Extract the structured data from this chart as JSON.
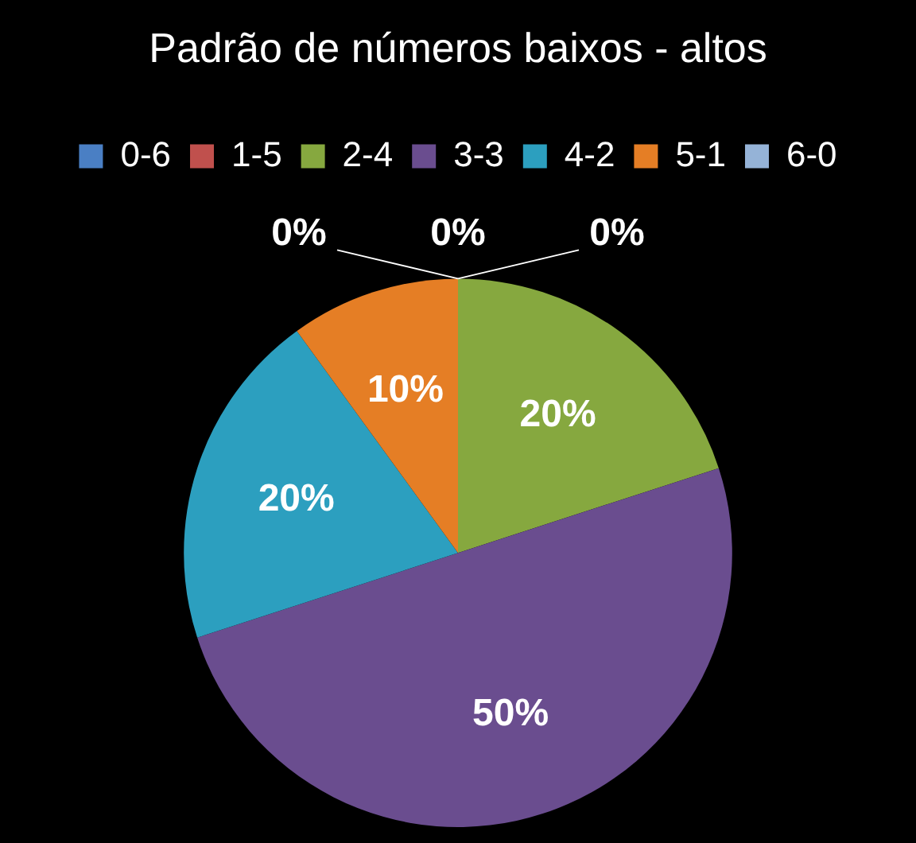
{
  "chart_data": {
    "type": "pie",
    "title": "Padrão de números baixos - altos",
    "categories": [
      "0-6",
      "1-5",
      "2-4",
      "3-3",
      "4-2",
      "5-1",
      "6-0"
    ],
    "values": [
      0,
      0,
      20,
      50,
      20,
      10,
      0
    ],
    "colors": [
      "#4a7fc4",
      "#c0504d",
      "#86a83f",
      "#6a4d8f",
      "#2c9fbf",
      "#e57e25",
      "#95b3d7"
    ],
    "value_labels": [
      "0%",
      "0%",
      "20%",
      "50%",
      "20%",
      "10%",
      "0%"
    ],
    "legend": "top"
  }
}
